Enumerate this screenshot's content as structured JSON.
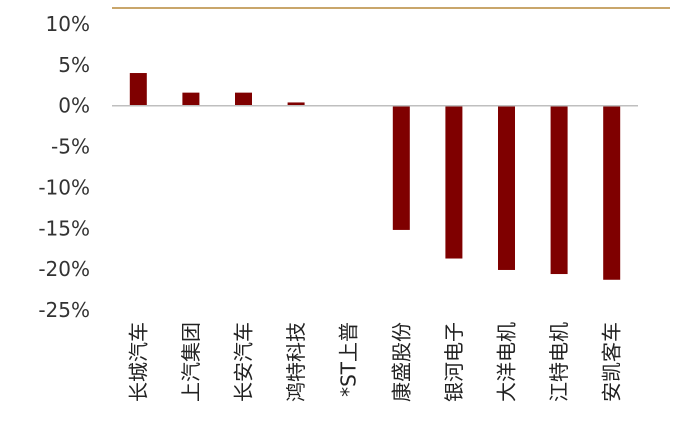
{
  "colors": {
    "bar": "#7f0000",
    "top_rule": "#c9a66b",
    "axis": "#bfbfbf"
  },
  "chart_data": {
    "type": "bar",
    "categories": [
      "长城汽车",
      "上汽集团",
      "长安汽车",
      "鸿特科技",
      "*ST上普",
      "康盛股份",
      "银河电子",
      "大洋电机",
      "江特电机",
      "安凯客车"
    ],
    "values": [
      4.0,
      1.6,
      1.6,
      0.4,
      0.0,
      -15.2,
      -18.7,
      -20.1,
      -20.6,
      -21.3
    ],
    "y_ticks": [
      "10%",
      "5%",
      "0%",
      "-5%",
      "-10%",
      "-15%",
      "-20%",
      "-25%"
    ],
    "ylim": [
      -25,
      10
    ],
    "grid": false,
    "legend": "none"
  }
}
